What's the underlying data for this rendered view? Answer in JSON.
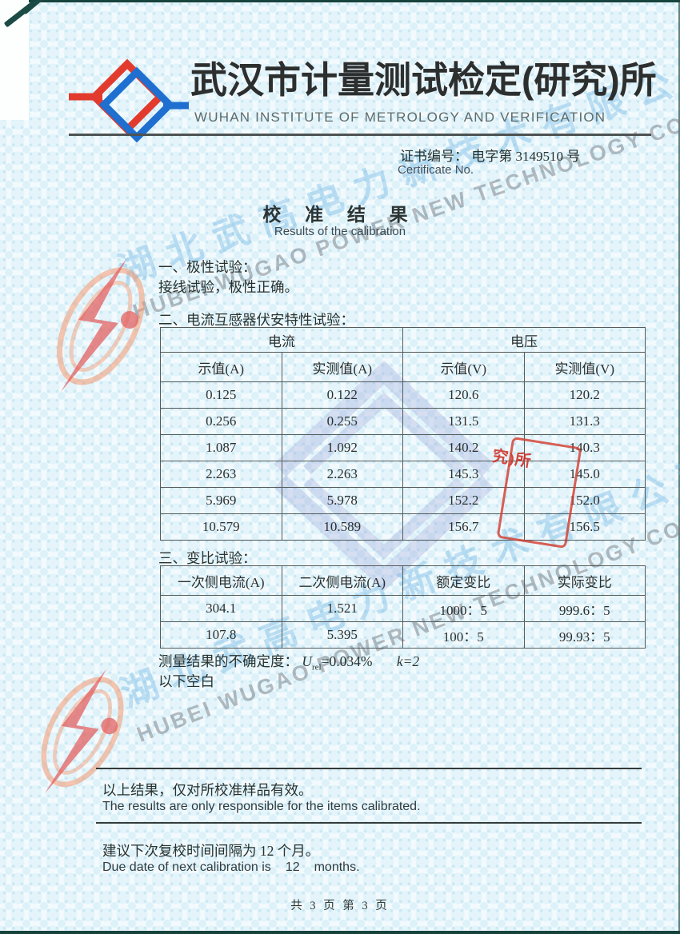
{
  "header": {
    "org_cn": "武汉市计量测试检定(研究)所",
    "org_en": "WUHAN INSTITUTE OF METROLOGY AND VERIFICATION",
    "logo_red": "#e23b2e",
    "logo_blue": "#1e6fd0"
  },
  "certificate": {
    "label_cn": "证书编号：",
    "number": "电字第 3149510 号",
    "label_en": "Certificate No."
  },
  "title": {
    "cn": "校 准 结 果",
    "en": "Results of the calibration"
  },
  "sections": {
    "polarity_heading": "一、极性试验：",
    "polarity_body": "接线试验，极性正确。",
    "volt_ampere_heading": "二、电流互感器伏安特性试验：",
    "ratio_heading": "三、变比试验："
  },
  "table1": {
    "group_headers": [
      "电流",
      "电压"
    ],
    "col_headers": [
      "示值(A)",
      "实测值(A)",
      "示值(V)",
      "实测值(V)"
    ],
    "rows": [
      [
        "0.125",
        "0.122",
        "120.6",
        "120.2"
      ],
      [
        "0.256",
        "0.255",
        "131.5",
        "131.3"
      ],
      [
        "1.087",
        "1.092",
        "140.2",
        "140.3"
      ],
      [
        "2.263",
        "2.263",
        "145.3",
        "145.0"
      ],
      [
        "5.969",
        "5.978",
        "152.2",
        "152.0"
      ],
      [
        "10.579",
        "10.589",
        "156.7",
        "156.5"
      ]
    ]
  },
  "table2": {
    "col_headers": [
      "一次侧电流(A)",
      "二次侧电流(A)",
      "额定变比",
      "实际变比"
    ],
    "rows": [
      [
        "304.1",
        "1.521",
        "1000：5",
        "999.6：5"
      ],
      [
        "107.8",
        "5.395",
        "100：5",
        "99.93：5"
      ]
    ]
  },
  "uncertainty": {
    "label": "测量结果的不确定度：",
    "u_symbol": "U",
    "u_sub": "rel",
    "u_value": "=0.034%",
    "k_value": "k=2"
  },
  "blank_note": "以下空白",
  "stamp_fragment": "究)所",
  "stamp_color": "#d23a2c",
  "watermark": {
    "cn": "湖北武高电力新技术有限公司",
    "en": "HUBEI WUGAO POWER NEW TECHNOLOGY CO..LTD"
  },
  "footer": {
    "validity_cn": "以上结果，仅对所校准样品有效。",
    "validity_en": "The results are only responsible for the items calibrated.",
    "due_cn": "建议下次复校时间间隔为 12 个月。",
    "due_en_prefix": "Due date of next calibration is",
    "due_interval": "12",
    "due_en_suffix": "months.",
    "page_info": "共 3 页 第 3 页"
  }
}
